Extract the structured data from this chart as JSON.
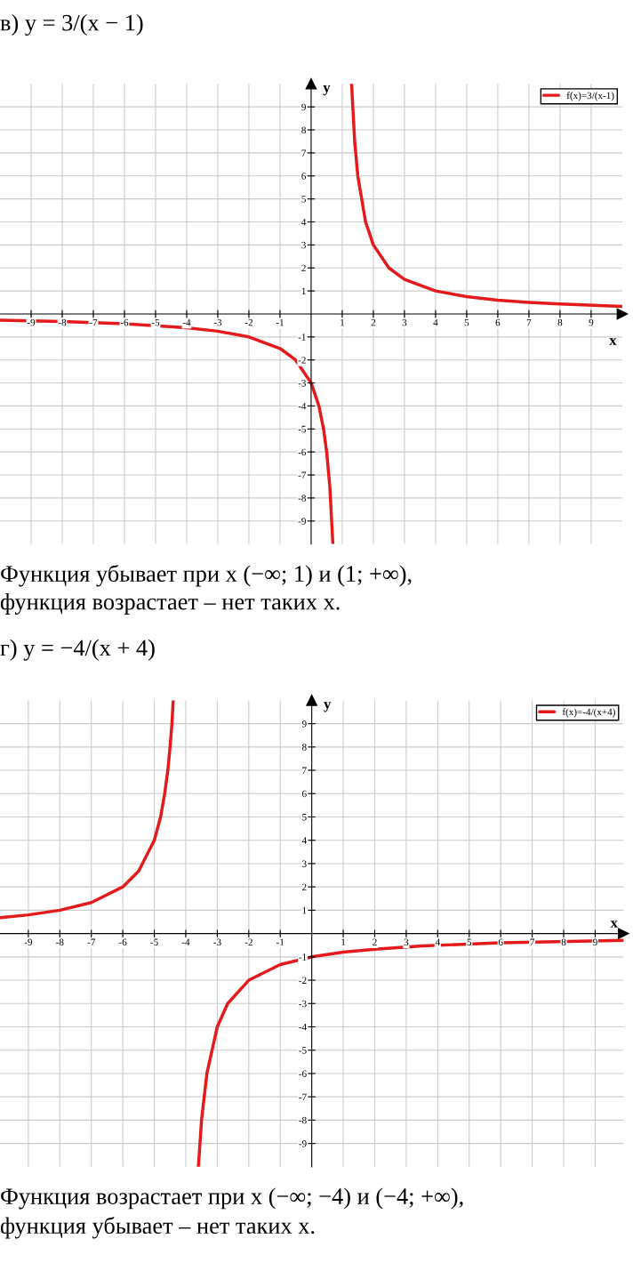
{
  "chart_data": [
    {
      "type": "line",
      "title": "в) y = 3/(x − 1)",
      "xlabel": "x",
      "ylabel": "y",
      "xlim": [
        -10,
        10
      ],
      "ylim": [
        -10,
        10
      ],
      "xticks": [
        -9,
        -8,
        -7,
        -6,
        -5,
        -4,
        -3,
        -2,
        -1,
        1,
        2,
        3,
        4,
        5,
        6,
        7,
        8,
        9
      ],
      "yticks": [
        -9,
        -8,
        -7,
        -6,
        -5,
        -4,
        -3,
        -2,
        -1,
        1,
        2,
        3,
        4,
        5,
        6,
        7,
        8,
        9
      ],
      "grid": true,
      "legend": "top right",
      "marker": "none",
      "line_style": "solid",
      "series": [
        {
          "name": "f(x)=3/(x-1)",
          "color": "#e41a1c",
          "x": [
            -10,
            -8,
            -6,
            -4,
            -3,
            -2,
            -1,
            -0.5,
            0,
            0.25,
            0.4,
            0.5,
            0.6,
            0.7,
            1,
            1.3,
            1.4,
            1.5,
            1.75,
            2,
            2.5,
            3,
            4,
            5,
            6,
            7,
            8,
            10
          ],
          "values": [
            -0.27,
            -0.33,
            -0.43,
            -0.6,
            -0.75,
            -1,
            -1.5,
            -2,
            -3,
            -4,
            -5,
            -6,
            -7.5,
            -10,
            null,
            10,
            7.5,
            6,
            4,
            3,
            2,
            1.5,
            1,
            0.75,
            0.6,
            0.5,
            0.43,
            0.33
          ]
        }
      ],
      "annotations": [
        "Функция убывает при x (−∞; 1) и (1; +∞),",
        "функция возрастает – нет таких x."
      ]
    },
    {
      "type": "line",
      "title": "г) y = −4/(x + 4)",
      "xlabel": "x",
      "ylabel": "y",
      "xlim": [
        -9.9,
        9.9
      ],
      "ylim": [
        -10,
        10
      ],
      "xticks": [
        -9,
        -8,
        -7,
        -6,
        -5,
        -4,
        -3,
        -2,
        -1,
        1,
        2,
        3,
        4,
        5,
        6,
        7,
        8,
        9
      ],
      "yticks": [
        -9,
        -8,
        -7,
        -6,
        -5,
        -4,
        -3,
        -2,
        -1,
        1,
        2,
        3,
        4,
        5,
        6,
        7,
        8,
        9
      ],
      "grid": true,
      "legend": "top right",
      "marker": "none",
      "line_style": "solid",
      "series": [
        {
          "name": "f(x)=-4/(x+4)",
          "color": "#e41a1c",
          "x": [
            -9.9,
            -9,
            -8,
            -7,
            -6,
            -5.5,
            -5,
            -4.8,
            -4.67,
            -4.57,
            -4.5,
            -4.44,
            -4.4,
            -4,
            -3.6,
            -3.5,
            -3.33,
            -3,
            -2.67,
            -2,
            -1,
            0,
            1,
            2,
            3.5,
            6,
            9.9
          ],
          "values": [
            0.68,
            0.8,
            1,
            1.33,
            2,
            2.67,
            4,
            5,
            6,
            7,
            8,
            9,
            10,
            null,
            -10,
            -8,
            -6,
            -4,
            -3,
            -2,
            -1.33,
            -1,
            -0.8,
            -0.67,
            -0.53,
            -0.4,
            -0.29
          ]
        }
      ],
      "annotations": [
        "Функция возрастает при x (−∞; −4) и (−4; +∞),",
        "функция убывает – нет таких x."
      ]
    }
  ]
}
